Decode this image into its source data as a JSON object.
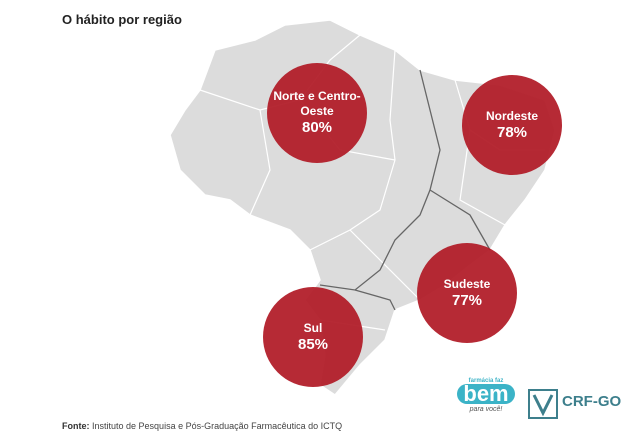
{
  "title": "O hábito por região",
  "regions": [
    {
      "name": "Norte e Centro-Oeste",
      "value": "80%"
    },
    {
      "name": "Nordeste",
      "value": "78%"
    },
    {
      "name": "Sudeste",
      "value": "77%"
    },
    {
      "name": "Sul",
      "value": "85%"
    }
  ],
  "footer": {
    "label": "Fonte:",
    "text": "Instituto de Pesquisa e Pós-Graduação Farmacêutica do ICTQ"
  },
  "logos": {
    "brand_top": "farmácia faz",
    "brand_main": "bem",
    "brand_bottom": "para você!",
    "council": "CRF-GO"
  }
}
